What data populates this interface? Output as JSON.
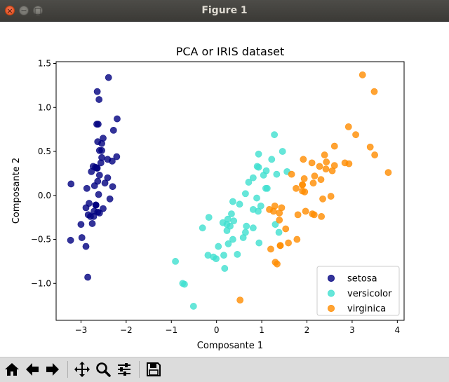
{
  "window": {
    "title": "Figure 1",
    "close_glyph": "×",
    "minimize_glyph": "−",
    "maximize_glyph": "□"
  },
  "toolbar": {
    "buttons": [
      {
        "name": "home-button",
        "icon": "home-icon"
      },
      {
        "name": "back-button",
        "icon": "arrow-left-icon"
      },
      {
        "name": "forward-button",
        "icon": "arrow-right-icon"
      },
      {
        "name": "pan-button",
        "icon": "move-icon"
      },
      {
        "name": "zoom-button",
        "icon": "zoom-icon"
      },
      {
        "name": "configure-subplots-button",
        "icon": "sliders-icon"
      },
      {
        "name": "save-button",
        "icon": "save-icon"
      }
    ]
  },
  "chart_data": {
    "type": "scatter",
    "title": "PCA or IRIS dataset",
    "xlabel": "Composante 1",
    "ylabel": "Composante 2",
    "xlim": [
      -3.55,
      4.15
    ],
    "ylim": [
      -1.42,
      1.52
    ],
    "xticks": [
      {
        "value": -3,
        "label": "−3"
      },
      {
        "value": -2,
        "label": "−2"
      },
      {
        "value": -1,
        "label": "−1"
      },
      {
        "value": 0,
        "label": "0"
      },
      {
        "value": 1,
        "label": "1"
      },
      {
        "value": 2,
        "label": "2"
      },
      {
        "value": 3,
        "label": "3"
      },
      {
        "value": 4,
        "label": "4"
      }
    ],
    "yticks": [
      {
        "value": -1.0,
        "label": "−1.0"
      },
      {
        "value": -0.5,
        "label": "−0.5"
      },
      {
        "value": 0.0,
        "label": "0.0"
      },
      {
        "value": 0.5,
        "label": "0.5"
      },
      {
        "value": 1.0,
        "label": "1.0"
      },
      {
        "value": 1.5,
        "label": "1.5"
      }
    ],
    "grid": false,
    "legend_position": "lower-right",
    "series": [
      {
        "name": "setosa",
        "color": "#000080",
        "points": [
          [
            -2.68,
            0.32
          ],
          [
            -2.71,
            -0.18
          ],
          [
            -2.89,
            -0.14
          ],
          [
            -2.75,
            -0.32
          ],
          [
            -2.73,
            0.33
          ],
          [
            -2.28,
            0.74
          ],
          [
            -2.82,
            -0.09
          ],
          [
            -2.63,
            0.16
          ],
          [
            -2.89,
            -0.58
          ],
          [
            -2.67,
            -0.11
          ],
          [
            -2.51,
            0.65
          ],
          [
            -2.61,
            0.01
          ],
          [
            -2.79,
            -0.24
          ],
          [
            -3.23,
            -0.51
          ],
          [
            -2.64,
            1.18
          ],
          [
            -2.39,
            1.34
          ],
          [
            -2.62,
            0.81
          ],
          [
            -2.65,
            0.31
          ],
          [
            -2.2,
            0.87
          ],
          [
            -2.59,
            0.51
          ],
          [
            -2.31,
            0.39
          ],
          [
            -2.54,
            0.43
          ],
          [
            -3.22,
            0.13
          ],
          [
            -2.3,
            0.1
          ],
          [
            -2.36,
            -0.04
          ],
          [
            -2.51,
            -0.15
          ],
          [
            -2.47,
            0.14
          ],
          [
            -2.56,
            0.37
          ],
          [
            -2.64,
            0.31
          ],
          [
            -2.63,
            -0.19
          ],
          [
            -2.59,
            -0.2
          ],
          [
            -2.41,
            0.41
          ],
          [
            -2.65,
            0.81
          ],
          [
            -2.6,
            1.09
          ],
          [
            -2.67,
            -0.11
          ],
          [
            -2.87,
            0.08
          ],
          [
            -2.63,
            0.61
          ],
          [
            -2.67,
            -0.11
          ],
          [
            -2.98,
            -0.48
          ],
          [
            -2.59,
            0.23
          ],
          [
            -2.77,
            0.27
          ],
          [
            -2.85,
            -0.93
          ],
          [
            -3.0,
            -0.33
          ],
          [
            -2.41,
            0.2
          ],
          [
            -2.21,
            0.44
          ],
          [
            -2.72,
            -0.24
          ],
          [
            -2.54,
            0.51
          ],
          [
            -2.84,
            -0.22
          ],
          [
            -2.54,
            0.59
          ],
          [
            -2.7,
            0.11
          ]
        ]
      },
      {
        "name": "versicolor",
        "color": "#40e0d0",
        "points": [
          [
            1.28,
            0.69
          ],
          [
            0.93,
            0.32
          ],
          [
            1.46,
            0.5
          ],
          [
            0.18,
            -0.83
          ],
          [
            1.09,
            0.08
          ],
          [
            0.64,
            -0.42
          ],
          [
            1.1,
            0.28
          ],
          [
            -0.75,
            -1.0
          ],
          [
            1.04,
            0.23
          ],
          [
            -0.01,
            -0.72
          ],
          [
            -0.51,
            -1.26
          ],
          [
            0.51,
            -0.1
          ],
          [
            0.26,
            -0.55
          ],
          [
            0.98,
            -0.12
          ],
          [
            -0.17,
            -0.25
          ],
          [
            0.93,
            0.47
          ],
          [
            0.66,
            -0.35
          ],
          [
            0.23,
            -0.33
          ],
          [
            0.94,
            -0.54
          ],
          [
            0.04,
            -0.58
          ],
          [
            1.12,
            0.08
          ],
          [
            0.36,
            -0.07
          ],
          [
            1.3,
            -0.33
          ],
          [
            0.92,
            -0.18
          ],
          [
            0.71,
            0.15
          ],
          [
            0.9,
            0.33
          ],
          [
            1.33,
            0.24
          ],
          [
            1.56,
            0.27
          ],
          [
            0.81,
            -0.16
          ],
          [
            -0.31,
            -0.37
          ],
          [
            -0.07,
            -0.7
          ],
          [
            -0.19,
            -0.68
          ],
          [
            0.14,
            -0.31
          ],
          [
            1.38,
            -0.42
          ],
          [
            0.59,
            -0.48
          ],
          [
            0.81,
            0.2
          ],
          [
            1.22,
            0.41
          ],
          [
            0.81,
            -0.37
          ],
          [
            0.25,
            -0.27
          ],
          [
            0.16,
            -0.68
          ],
          [
            0.46,
            -0.67
          ],
          [
            0.89,
            -0.03
          ],
          [
            0.23,
            -0.4
          ],
          [
            -0.71,
            -1.01
          ],
          [
            0.36,
            -0.5
          ],
          [
            0.33,
            -0.21
          ],
          [
            0.38,
            -0.29
          ],
          [
            0.64,
            0.02
          ],
          [
            -0.91,
            -0.75
          ],
          [
            0.3,
            -0.35
          ]
        ]
      },
      {
        "name": "virginica",
        "color": "#ff8c00",
        "points": [
          [
            2.53,
            -0.01
          ],
          [
            1.41,
            -0.57
          ],
          [
            2.61,
            0.34
          ],
          [
            1.97,
            -0.18
          ],
          [
            2.35,
            -0.04
          ],
          [
            3.4,
            0.55
          ],
          [
            0.52,
            -1.19
          ],
          [
            2.93,
            0.36
          ],
          [
            2.32,
            -0.24
          ],
          [
            2.92,
            0.78
          ],
          [
            1.66,
            0.24
          ],
          [
            1.8,
            -0.22
          ],
          [
            2.17,
            0.22
          ],
          [
            1.34,
            -0.78
          ],
          [
            1.59,
            -0.54
          ],
          [
            1.9,
            0.12
          ],
          [
            1.95,
            0.04
          ],
          [
            3.49,
            1.18
          ],
          [
            3.8,
            0.26
          ],
          [
            1.3,
            -0.76
          ],
          [
            2.43,
            0.38
          ],
          [
            1.2,
            -0.61
          ],
          [
            3.5,
            0.46
          ],
          [
            1.39,
            -0.2
          ],
          [
            2.28,
            0.33
          ],
          [
            2.61,
            0.56
          ],
          [
            1.26,
            -0.18
          ],
          [
            1.29,
            -0.12
          ],
          [
            2.12,
            -0.21
          ],
          [
            2.39,
            0.46
          ],
          [
            2.84,
            0.37
          ],
          [
            3.23,
            1.37
          ],
          [
            2.16,
            -0.22
          ],
          [
            1.44,
            -0.14
          ],
          [
            1.78,
            -0.5
          ],
          [
            3.08,
            0.69
          ],
          [
            2.14,
            0.14
          ],
          [
            1.9,
            0.05
          ],
          [
            1.17,
            -0.16
          ],
          [
            2.11,
            0.37
          ],
          [
            2.31,
            0.18
          ],
          [
            1.92,
            0.41
          ],
          [
            1.41,
            -0.57
          ],
          [
            2.56,
            0.28
          ],
          [
            2.42,
            0.3
          ],
          [
            1.94,
            0.19
          ],
          [
            1.53,
            -0.38
          ],
          [
            1.76,
            0.08
          ],
          [
            1.9,
            0.12
          ],
          [
            1.39,
            -0.28
          ]
        ]
      }
    ]
  }
}
